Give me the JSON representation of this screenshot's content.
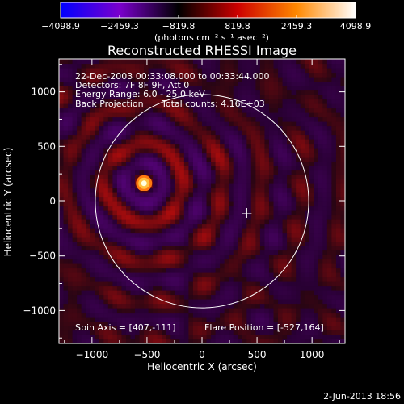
{
  "chart_data": {
    "type": "heatmap",
    "title": "Reconstructed RHESSI Image",
    "xlabel": "Heliocentric X (arcsec)",
    "ylabel": "Heliocentric Y (arcsec)",
    "xlim": [
      -1300,
      1300
    ],
    "ylim": [
      -1300,
      1300
    ],
    "xticks": [
      -1000,
      -500,
      0,
      500,
      1000
    ],
    "yticks": [
      -1000,
      -500,
      0,
      500,
      1000
    ],
    "xtick_labels": [
      "−1000",
      "−500",
      "0",
      "500",
      "1000"
    ],
    "ytick_labels": [
      "−1000",
      "−500",
      "0",
      "500",
      "1000"
    ],
    "grid": false,
    "colorbar": {
      "vmin": -4098.9,
      "vmax": 4098.9,
      "tick_values": [
        -4098.9,
        -2459.3,
        -819.8,
        819.8,
        2459.3,
        4098.9
      ],
      "tick_labels": [
        "−4098.9",
        "−2459.3",
        "−819.8",
        "819.8",
        "2459.3",
        "4098.9"
      ],
      "colors": [
        "#0000ff",
        "#7a00cc",
        "#000000",
        "#cc0000",
        "#ff8800",
        "#ffffff"
      ],
      "units": "(photons cm⁻² s⁻¹ asec⁻²)"
    },
    "annotations": {
      "line1": "22-Dec-2003 00:33:08.000 to 00:33:44.000",
      "line2": "Detectors: 7F 8F 9F, Att 0",
      "line3": "Energy Range: 6.0 - 25.0 keV",
      "line4a": "Back Projection",
      "line4b": "Total counts: 4.16E+03",
      "spin_axis": "Spin Axis = [407,-111]",
      "flare_position": "Flare Position = [-527,164]"
    },
    "flare_position": [
      -527,
      164
    ],
    "spin_axis": [
      407,
      -111
    ],
    "solar_disk_center": [
      0,
      0
    ],
    "solar_disk_radius_arcsec": 970
  },
  "footer": {
    "date": "2-Jun-2013 18:56"
  }
}
